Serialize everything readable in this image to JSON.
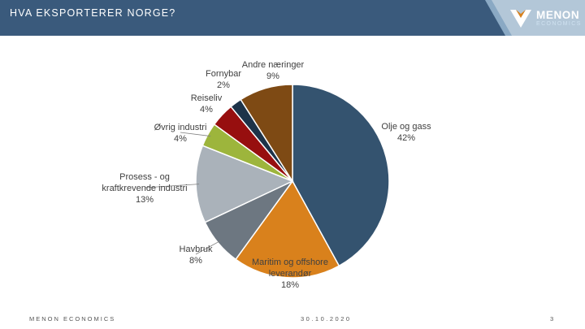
{
  "header": {
    "title": "HVA EKSPORTERER NORGE?",
    "logo_main": "MENON",
    "logo_sub": "ECONOMICS",
    "bar_color": "#3a5a7c",
    "accent_color": "#8aa9c4"
  },
  "footer": {
    "left": "MENON ECONOMICS",
    "date": "30.10.2020",
    "page": "3"
  },
  "chart_data": {
    "type": "pie",
    "title": "",
    "slices": [
      {
        "label": "Olje og gass",
        "value": 42,
        "percent_label": "42%",
        "color": "#34536f"
      },
      {
        "label": "Maritim og offshore leverandør",
        "value": 18,
        "percent_label": "18%",
        "color": "#d9811c"
      },
      {
        "label": "Havbruk",
        "value": 8,
        "percent_label": "8%",
        "color": "#6d7781"
      },
      {
        "label": "Prosess - og kraftkrevende industri",
        "value": 13,
        "percent_label": "13%",
        "color": "#aab2ba"
      },
      {
        "label": "Øvrig industri",
        "value": 4,
        "percent_label": "4%",
        "color": "#9db53c"
      },
      {
        "label": "Reiseliv",
        "value": 4,
        "percent_label": "4%",
        "color": "#970f0f"
      },
      {
        "label": "Fornybar",
        "value": 2,
        "percent_label": "2%",
        "color": "#1d3349"
      },
      {
        "label": "Andre næringer",
        "value": 9,
        "percent_label": "9%",
        "color": "#7e4a14"
      }
    ],
    "legend": "none",
    "data_labels": "outside"
  }
}
